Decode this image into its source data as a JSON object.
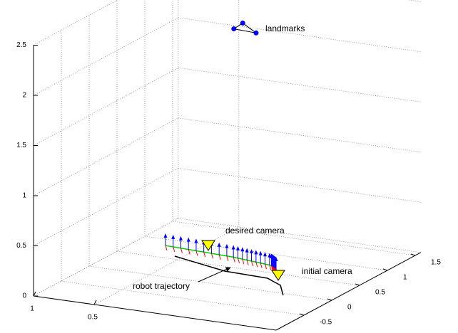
{
  "chart_data": {
    "type": "line3d",
    "xlim": [
      -1,
      1
    ],
    "ylim": [
      -1,
      1.6
    ],
    "zlim": [
      0,
      2.5
    ],
    "xticks": [
      0.5,
      1
    ],
    "yticks": [
      -0.5,
      0,
      0.5,
      1,
      1.5
    ],
    "zticks": [
      0,
      0.5,
      1,
      1.5,
      2,
      2.5
    ],
    "grid": true,
    "series": [
      {
        "color": "#000000",
        "x": [
          0.562,
          0.054,
          -0.312,
          -0.483,
          -0.622
        ],
        "y": [
          0.583,
          0.374,
          0.346,
          0.205,
          -0.049
        ],
        "z": [
          0,
          0,
          0,
          0,
          0
        ]
      },
      {
        "color": "#00cc00",
        "x": [
          0.752,
          0.18,
          -0.18,
          -0.256
        ],
        "y": [
          0.831,
          0.778,
          0.697,
          0.622
        ],
        "z": [
          0,
          0,
          0,
          0
        ]
      }
    ],
    "landmarks": {
      "color": "#0000ff",
      "x": [
        0,
        0,
        0
      ],
      "y": [
        0.42,
        0.58,
        0.82
      ],
      "z": [
        2.41,
        2.42,
        2.25
      ]
    },
    "cameras": {
      "color": "#ffff00",
      "x": [
        0.464,
        -0.356
      ],
      "y": [
        0.973,
        0.442
      ],
      "z": [
        0,
        0
      ]
    },
    "annotations": [
      "landmarks",
      "desired camera",
      "initial camera",
      "robot trajectory"
    ]
  }
}
